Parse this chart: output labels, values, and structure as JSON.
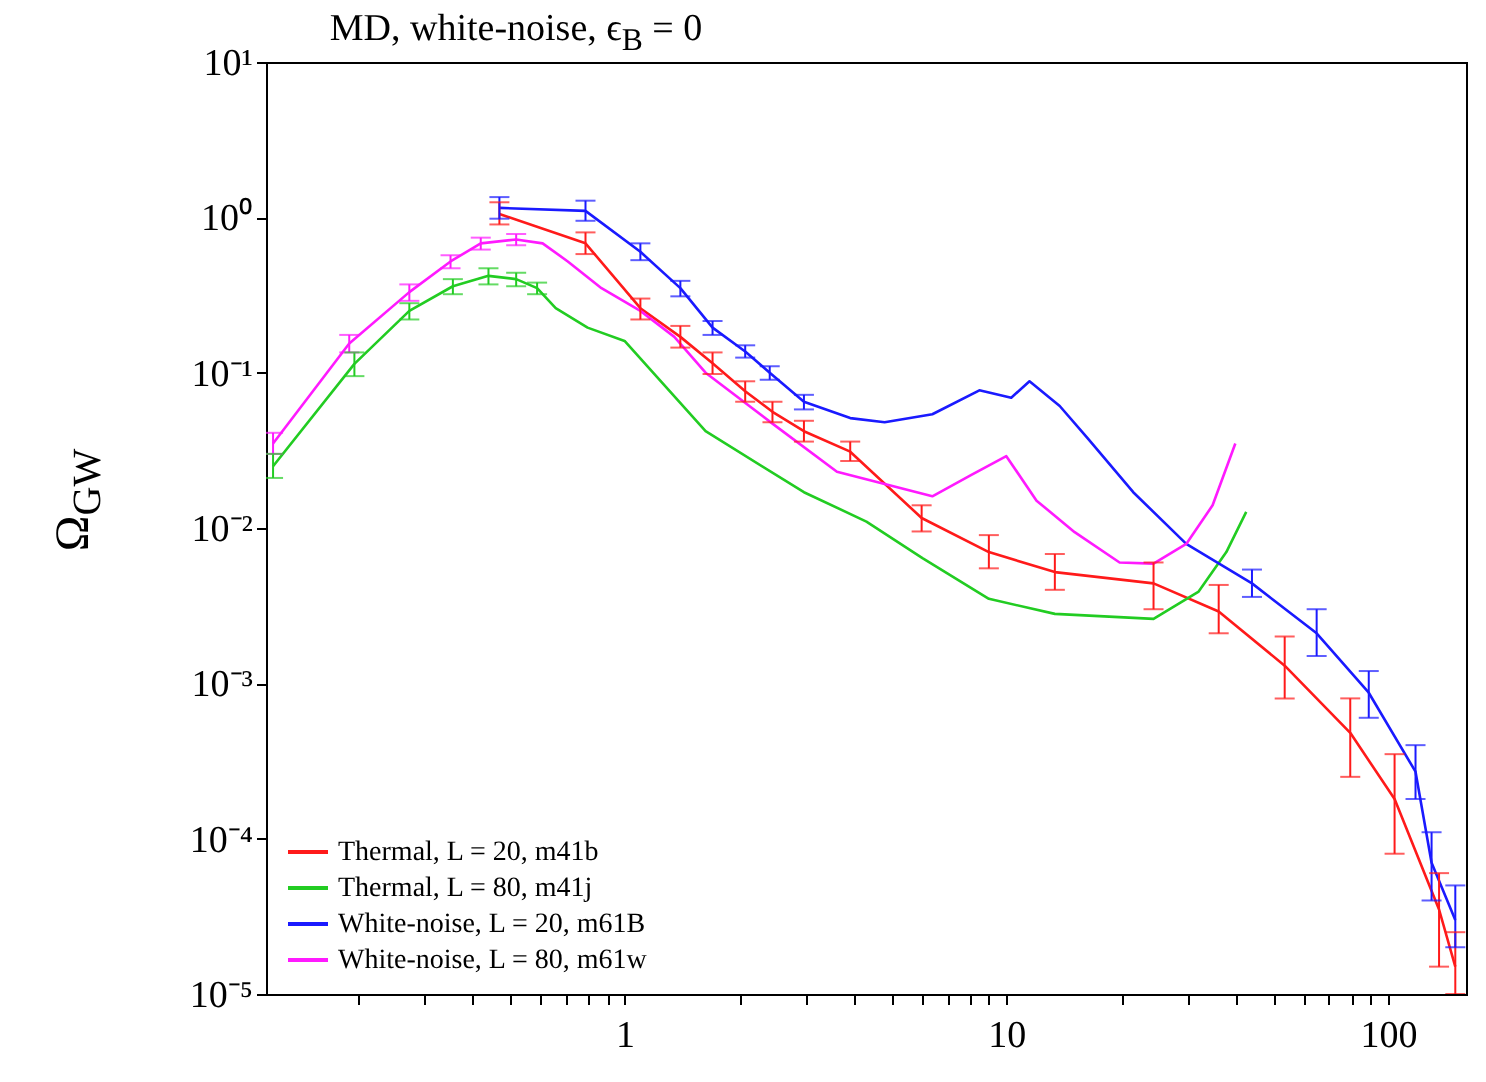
{
  "chart_data": {
    "type": "line",
    "title": "MD, white-noise, ϵ$_{B}$ = 0",
    "ylabel": "Ω$_{GW}$",
    "log": "xy",
    "legend": "bottom left",
    "xlim": [
      0.115,
      160
    ],
    "ylim": [
      1e-05,
      10
    ],
    "xticks": [
      {
        "value": 0.2,
        "label": null
      },
      {
        "value": 0.3,
        "label": null
      },
      {
        "value": 0.4,
        "label": null
      },
      {
        "value": 0.5,
        "label": null
      },
      {
        "value": 0.6,
        "label": null
      },
      {
        "value": 0.7,
        "label": null
      },
      {
        "value": 0.8,
        "label": null
      },
      {
        "value": 0.9,
        "label": null
      },
      1,
      {
        "value": 2,
        "label": null
      },
      {
        "value": 3,
        "label": null
      },
      {
        "value": 4,
        "label": null
      },
      {
        "value": 5,
        "label": null
      },
      {
        "value": 6,
        "label": null
      },
      {
        "value": 7,
        "label": null
      },
      {
        "value": 8,
        "label": null
      },
      {
        "value": 9,
        "label": null
      },
      10,
      {
        "value": 20,
        "label": null
      },
      {
        "value": 30,
        "label": null
      },
      {
        "value": 40,
        "label": null
      },
      {
        "value": 50,
        "label": null
      },
      {
        "value": 60,
        "label": null
      },
      {
        "value": 70,
        "label": null
      },
      {
        "value": 80,
        "label": null
      },
      {
        "value": 90,
        "label": null
      },
      100
    ],
    "yticks": [
      {
        "value": 1e-05,
        "label": "10⁻⁵"
      },
      {
        "value": 0.0001,
        "label": "10⁻⁴"
      },
      {
        "value": 0.001,
        "label": "10⁻³"
      },
      {
        "value": 0.01,
        "label": "10⁻²"
      },
      {
        "value": 0.1,
        "label": "10⁻¹"
      },
      {
        "value": 1,
        "label": "10⁰"
      },
      {
        "value": 10,
        "label": "10¹"
      }
    ],
    "series": [
      {
        "name": "Thermal, L = 20, m41b",
        "color": "#ff1a1a",
        "x": [
          0.47,
          0.79,
          1.1,
          1.4,
          1.7,
          2.07,
          2.44,
          2.95,
          3.9,
          6.0,
          9.0,
          13.4,
          24.3,
          36,
          53.6,
          79.6,
          104,
          136,
          150
        ],
        "values": [
          1.05,
          0.68,
          0.26,
          0.17,
          0.115,
          0.076,
          0.056,
          0.042,
          0.031,
          0.0116,
          0.007,
          0.0052,
          0.0044,
          0.0029,
          0.0013,
          0.00048,
          0.00018,
          3.5e-05,
          1.5e-05
        ],
        "errors": [
          [
            0.9,
            1.25
          ],
          [
            0.58,
            0.8
          ],
          [
            0.22,
            0.3
          ],
          [
            0.145,
            0.2
          ],
          [
            0.098,
            0.135
          ],
          [
            0.065,
            0.088
          ],
          [
            0.048,
            0.065
          ],
          [
            0.036,
            0.049
          ],
          [
            0.027,
            0.036
          ],
          [
            0.0095,
            0.014
          ],
          [
            0.0055,
            0.009
          ],
          [
            0.004,
            0.0068
          ],
          [
            0.003,
            0.006
          ],
          [
            0.0021,
            0.0043
          ],
          [
            0.0008,
            0.002
          ],
          [
            0.00025,
            0.0008
          ],
          [
            8e-05,
            0.00035
          ],
          [
            1.5e-05,
            6e-05
          ],
          [
            1e-05,
            2.5e-05
          ]
        ]
      },
      {
        "name": "Thermal, L = 80, m41j",
        "color": "#22cc22",
        "x": [
          0.12,
          0.196,
          0.273,
          0.355,
          0.44,
          0.52,
          0.59,
          0.66,
          0.8,
          1.0,
          1.63,
          2.95,
          4.3,
          6.03,
          9.0,
          13.4,
          24.3,
          31.9,
          37.7,
          42.5
        ],
        "values": [
          0.025,
          0.114,
          0.25,
          0.36,
          0.42,
          0.4,
          0.35,
          0.26,
          0.195,
          0.16,
          0.042,
          0.017,
          0.011,
          0.0064,
          0.0035,
          0.0028,
          0.0026,
          0.0039,
          0.007,
          0.0127
        ],
        "errors": [
          [
            0.021,
            0.03
          ],
          [
            0.095,
            0.135
          ],
          [
            0.22,
            0.28
          ],
          [
            0.32,
            0.4
          ],
          [
            0.37,
            0.47
          ],
          [
            0.36,
            0.44
          ],
          [
            0.32,
            0.38
          ],
          null,
          null,
          null,
          null,
          null,
          null,
          null,
          null,
          null,
          null,
          null,
          null,
          null
        ]
      },
      {
        "name": "White-noise, L = 20, m61B",
        "color": "#1a1aff",
        "x": [
          0.47,
          0.79,
          1.1,
          1.4,
          1.7,
          2.07,
          2.4,
          2.95,
          3.9,
          4.8,
          6.4,
          8.5,
          10.3,
          11.5,
          13.8,
          16.3,
          21.5,
          29.6,
          44,
          65,
          89,
          118,
          130,
          150
        ],
        "values": [
          1.15,
          1.1,
          0.6,
          0.35,
          0.195,
          0.137,
          0.1,
          0.065,
          0.051,
          0.048,
          0.054,
          0.077,
          0.069,
          0.088,
          0.061,
          0.038,
          0.017,
          0.0079,
          0.0044,
          0.0021,
          0.00087,
          0.00027,
          7e-05,
          3e-05
        ],
        "errors": [
          [
            0.98,
            1.35
          ],
          [
            0.95,
            1.28
          ],
          [
            0.53,
            0.68
          ],
          [
            0.31,
            0.39
          ],
          [
            0.175,
            0.215
          ],
          [
            0.125,
            0.15
          ],
          [
            0.09,
            0.11
          ],
          [
            0.058,
            0.072
          ],
          null,
          null,
          null,
          null,
          null,
          null,
          null,
          null,
          null,
          null,
          [
            0.0036,
            0.0054
          ],
          [
            0.0015,
            0.003
          ],
          [
            0.0006,
            0.0012
          ],
          [
            0.00018,
            0.0004
          ],
          [
            4e-05,
            0.00011
          ],
          [
            2e-05,
            5e-05
          ]
        ]
      },
      {
        "name": "White-noise, L = 80, m61w",
        "color": "#ff1aff",
        "x": [
          0.12,
          0.19,
          0.273,
          0.35,
          0.42,
          0.52,
          0.61,
          0.71,
          0.87,
          1.1,
          1.35,
          1.63,
          2.44,
          3.6,
          6.4,
          8.1,
          10,
          12,
          15.1,
          19.8,
          24.3,
          29.6,
          34.7,
          39.8
        ],
        "values": [
          0.035,
          0.154,
          0.33,
          0.52,
          0.68,
          0.72,
          0.68,
          0.52,
          0.35,
          0.25,
          0.17,
          0.1,
          0.047,
          0.023,
          0.016,
          0.022,
          0.029,
          0.015,
          0.0094,
          0.006,
          0.0059,
          0.0079,
          0.014,
          0.035
        ],
        "errors": [
          [
            0.03,
            0.041
          ],
          [
            0.135,
            0.175
          ],
          [
            0.29,
            0.37
          ],
          [
            0.47,
            0.57
          ],
          [
            0.62,
            0.74
          ],
          [
            0.66,
            0.78
          ],
          null,
          null,
          null,
          null,
          null,
          null,
          null,
          null,
          null,
          null,
          null,
          null,
          null,
          null,
          null,
          null,
          null,
          null
        ]
      }
    ]
  }
}
